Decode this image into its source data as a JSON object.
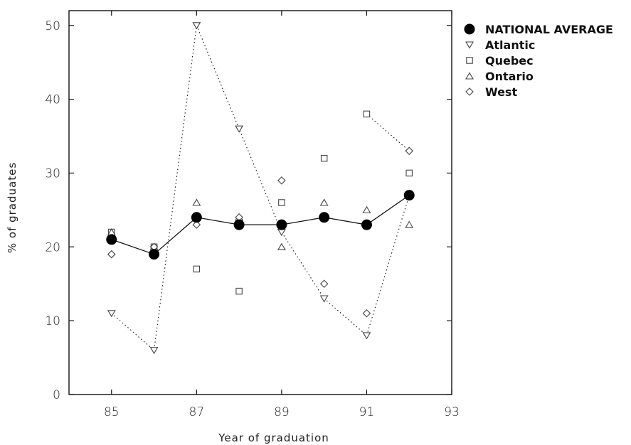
{
  "chart_data": {
    "type": "line",
    "xlabel": "Year of graduation",
    "ylabel": "% of graduates",
    "xlim": [
      84,
      93
    ],
    "ylim": [
      0,
      52
    ],
    "xticks": [
      85,
      87,
      89,
      91,
      93
    ],
    "yticks": [
      0,
      10,
      20,
      30,
      40,
      50
    ],
    "legend_position": "top-right-outside",
    "x": [
      85,
      86,
      87,
      88,
      89,
      90,
      91,
      92
    ],
    "series": [
      {
        "name": "NATIONAL AVERAGE",
        "marker": "filled-circle",
        "line": "solid",
        "values": [
          21,
          19,
          24,
          23,
          23,
          24,
          23,
          27
        ]
      },
      {
        "name": "Atlantic",
        "marker": "triangle-down",
        "line": "dotted",
        "values": [
          11,
          6,
          50,
          36,
          22,
          13,
          8,
          27
        ]
      },
      {
        "name": "Quebec",
        "marker": "square",
        "line": "none",
        "values": [
          22,
          20,
          17,
          14,
          26,
          32,
          38,
          30
        ]
      },
      {
        "name": "Ontario",
        "marker": "triangle-up",
        "line": "none",
        "values": [
          22,
          20,
          26,
          24,
          20,
          26,
          25,
          23
        ]
      },
      {
        "name": "West",
        "marker": "diamond",
        "line": "none",
        "values": [
          19,
          20,
          23,
          24,
          29,
          15,
          11,
          33
        ]
      }
    ],
    "extra_dotted_segments": [
      {
        "from": [
          91,
          38
        ],
        "to": [
          92,
          33
        ]
      }
    ],
    "colors": {
      "ink": "#111111",
      "grey_marker": "#444444"
    }
  }
}
